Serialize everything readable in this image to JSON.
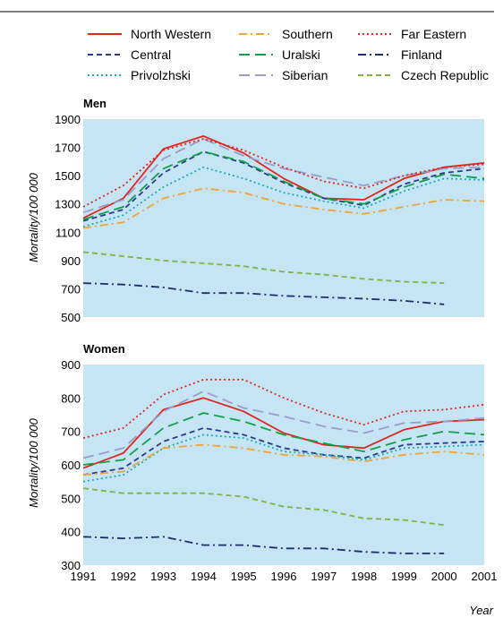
{
  "chart_data": [
    {
      "type": "line",
      "title": "Men",
      "ylabel": "Mortality/100 000",
      "xlabel": "Year",
      "ylim": [
        500,
        1900
      ],
      "yticks": [
        500,
        700,
        900,
        1100,
        1300,
        1500,
        1700,
        1900
      ],
      "x": [
        1991,
        1992,
        1993,
        1994,
        1995,
        1996,
        1997,
        1998,
        1999,
        2000,
        2001
      ],
      "grid": false,
      "series": [
        {
          "name": "North Western",
          "values": [
            1200,
            1340,
            1690,
            1780,
            1660,
            1480,
            1340,
            1330,
            1480,
            1560,
            1590
          ]
        },
        {
          "name": "Central",
          "values": [
            1180,
            1260,
            1520,
            1670,
            1590,
            1450,
            1340,
            1290,
            1440,
            1520,
            1550
          ]
        },
        {
          "name": "Privolzhski",
          "values": [
            1140,
            1220,
            1420,
            1560,
            1480,
            1380,
            1320,
            1270,
            1390,
            1480,
            1470
          ]
        },
        {
          "name": "Southern",
          "values": [
            1130,
            1170,
            1340,
            1410,
            1380,
            1300,
            1260,
            1230,
            1280,
            1330,
            1320
          ]
        },
        {
          "name": "Uralski",
          "values": [
            1190,
            1280,
            1550,
            1670,
            1600,
            1460,
            1340,
            1300,
            1420,
            1510,
            1480
          ]
        },
        {
          "name": "Siberian",
          "values": [
            1240,
            1330,
            1620,
            1760,
            1640,
            1550,
            1490,
            1430,
            1500,
            1550,
            1560
          ]
        },
        {
          "name": "Far Eastern",
          "values": [
            1280,
            1430,
            1680,
            1760,
            1680,
            1560,
            1460,
            1410,
            1500,
            1560,
            1580
          ]
        },
        {
          "name": "Finland",
          "values": [
            740,
            730,
            710,
            670,
            670,
            650,
            640,
            630,
            615,
            590,
            null
          ]
        },
        {
          "name": "Czech Republic",
          "values": [
            960,
            930,
            900,
            880,
            860,
            820,
            800,
            770,
            750,
            740,
            null
          ]
        }
      ]
    },
    {
      "type": "line",
      "title": "Women",
      "ylabel": "Mortality/100 000",
      "xlabel": "Year",
      "ylim": [
        300,
        900
      ],
      "yticks": [
        300,
        400,
        500,
        600,
        700,
        800,
        900
      ],
      "x": [
        1991,
        1992,
        1993,
        1994,
        1995,
        1996,
        1997,
        1998,
        1999,
        2000,
        2001
      ],
      "grid": false,
      "series": [
        {
          "name": "North Western",
          "values": [
            590,
            635,
            765,
            800,
            760,
            695,
            660,
            650,
            705,
            730,
            735
          ]
        },
        {
          "name": "Central",
          "values": [
            570,
            590,
            670,
            710,
            690,
            650,
            630,
            620,
            660,
            665,
            670
          ]
        },
        {
          "name": "Privolzhski",
          "values": [
            550,
            570,
            650,
            690,
            680,
            640,
            630,
            615,
            650,
            655,
            660
          ]
        },
        {
          "name": "Southern",
          "values": [
            570,
            580,
            650,
            660,
            650,
            630,
            625,
            610,
            630,
            640,
            630
          ]
        },
        {
          "name": "Uralski",
          "values": [
            600,
            615,
            710,
            755,
            730,
            690,
            665,
            640,
            675,
            700,
            690
          ]
        },
        {
          "name": "Siberian",
          "values": [
            620,
            650,
            760,
            820,
            770,
            745,
            715,
            695,
            725,
            730,
            740
          ]
        },
        {
          "name": "Far Eastern",
          "values": [
            680,
            710,
            810,
            855,
            855,
            800,
            755,
            720,
            760,
            765,
            780
          ]
        },
        {
          "name": "Finland",
          "values": [
            385,
            380,
            385,
            360,
            360,
            350,
            350,
            340,
            335,
            335,
            null
          ]
        },
        {
          "name": "Czech Republic",
          "values": [
            530,
            515,
            515,
            515,
            505,
            475,
            465,
            440,
            435,
            420,
            null
          ]
        }
      ]
    }
  ],
  "legend": {
    "placement": "top",
    "entries": [
      {
        "name": "North Western",
        "color": "#e2251d",
        "dash": "solid"
      },
      {
        "name": "Central",
        "color": "#2b3a8f",
        "dash": "dash"
      },
      {
        "name": "Privolzhski",
        "color": "#1aaab5",
        "dash": "dot"
      },
      {
        "name": "Southern",
        "color": "#f0a336",
        "dash": "dashdot"
      },
      {
        "name": "Uralski",
        "color": "#12a04a",
        "dash": "longdash"
      },
      {
        "name": "Siberian",
        "color": "#9a9cc9",
        "dash": "longdash"
      },
      {
        "name": "Far Eastern",
        "color": "#e2251d",
        "dash": "dot"
      },
      {
        "name": "Finland",
        "color": "#1f2d6e",
        "dash": "dashdot"
      },
      {
        "name": "Czech Republic",
        "color": "#7cb441",
        "dash": "dash"
      }
    ]
  },
  "colors": {
    "panel_background": "#c5e5f5"
  }
}
